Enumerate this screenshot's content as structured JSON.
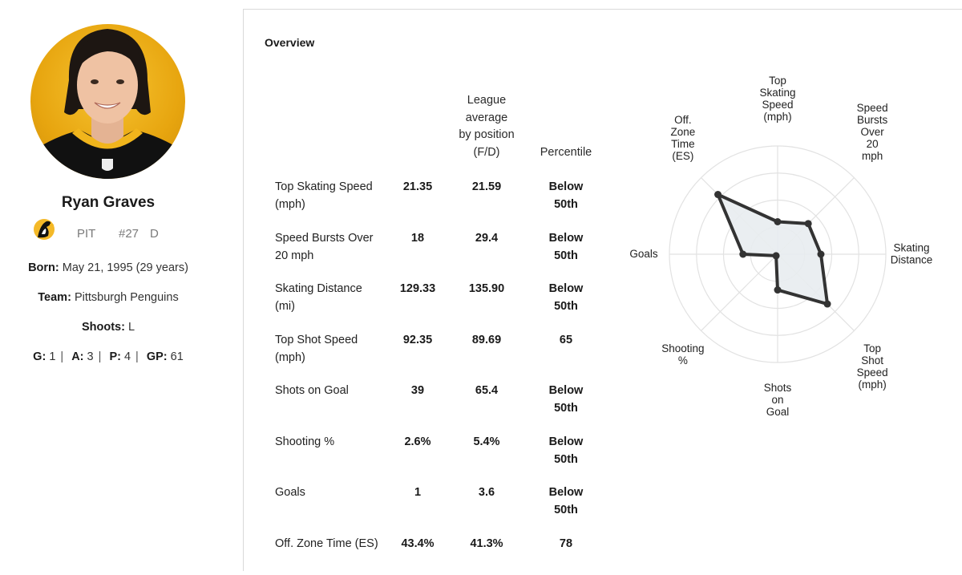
{
  "player": {
    "name": "Ryan Graves",
    "team_abbr": "PIT",
    "number": "#27",
    "position": "D",
    "born_label": "Born:",
    "born_value": "May 21, 1995 (29 years)",
    "team_label": "Team:",
    "team_value": "Pittsburgh Penguins",
    "shoots_label": "Shoots:",
    "shoots_value": "L",
    "stats_line": [
      {
        "label": "G:",
        "value": "1"
      },
      {
        "label": "A:",
        "value": "3"
      },
      {
        "label": "P:",
        "value": "4"
      },
      {
        "label": "GP:",
        "value": "61"
      }
    ]
  },
  "overview": {
    "title": "Overview",
    "headers": {
      "league": [
        "League",
        "average",
        "by position",
        "(F/D)"
      ],
      "percentile": "Percentile"
    },
    "rows": [
      {
        "label": [
          "Top Skating Speed",
          "(mph)"
        ],
        "value": "21.35",
        "league": "21.59",
        "pct": [
          "Below",
          "50th"
        ]
      },
      {
        "label": [
          "Speed Bursts Over",
          "20 mph"
        ],
        "value": "18",
        "league": "29.4",
        "pct": [
          "Below",
          "50th"
        ]
      },
      {
        "label": [
          "Skating Distance",
          "(mi)"
        ],
        "value": "129.33",
        "league": "135.90",
        "pct": [
          "Below",
          "50th"
        ]
      },
      {
        "label": [
          "Top Shot Speed",
          "(mph)"
        ],
        "value": "92.35",
        "league": "89.69",
        "pct": [
          "65",
          ""
        ]
      },
      {
        "label": [
          "Shots on Goal",
          ""
        ],
        "value": "39",
        "league": "65.4",
        "pct": [
          "Below",
          "50th"
        ]
      },
      {
        "label": [
          "Shooting %",
          ""
        ],
        "value": "2.6%",
        "league": "5.4%",
        "pct": [
          "Below",
          "50th"
        ]
      },
      {
        "label": [
          "Goals",
          ""
        ],
        "value": "1",
        "league": "3.6",
        "pct": [
          "Below",
          "50th"
        ]
      },
      {
        "label": [
          "Off. Zone Time (ES)",
          ""
        ],
        "value": "43.4%",
        "league": "41.3%",
        "pct": [
          "78",
          ""
        ]
      }
    ]
  },
  "radar": {
    "axes": [
      {
        "label": [
          "Top",
          "Skating",
          "Speed",
          "(mph)"
        ],
        "value": 0.3
      },
      {
        "label": [
          "Speed",
          "Bursts",
          "Over",
          "20",
          "mph"
        ],
        "value": 0.4
      },
      {
        "label": [
          "Skating",
          "Distance"
        ],
        "value": 0.4
      },
      {
        "label": [
          "Top",
          "Shot",
          "Speed",
          "(mph)"
        ],
        "value": 0.65
      },
      {
        "label": [
          "Shots",
          "on",
          "Goal"
        ],
        "value": 0.33
      },
      {
        "label": [
          "Shooting",
          "%"
        ],
        "value": 0.02
      },
      {
        "label": [
          "Goals"
        ],
        "value": 0.32
      },
      {
        "label": [
          "Off.",
          "Zone",
          "Time",
          "(ES)"
        ],
        "value": 0.78
      }
    ],
    "fill_color": "#e8ecf0",
    "line_color": "#333333",
    "grid_color": "#e2e2e2"
  }
}
